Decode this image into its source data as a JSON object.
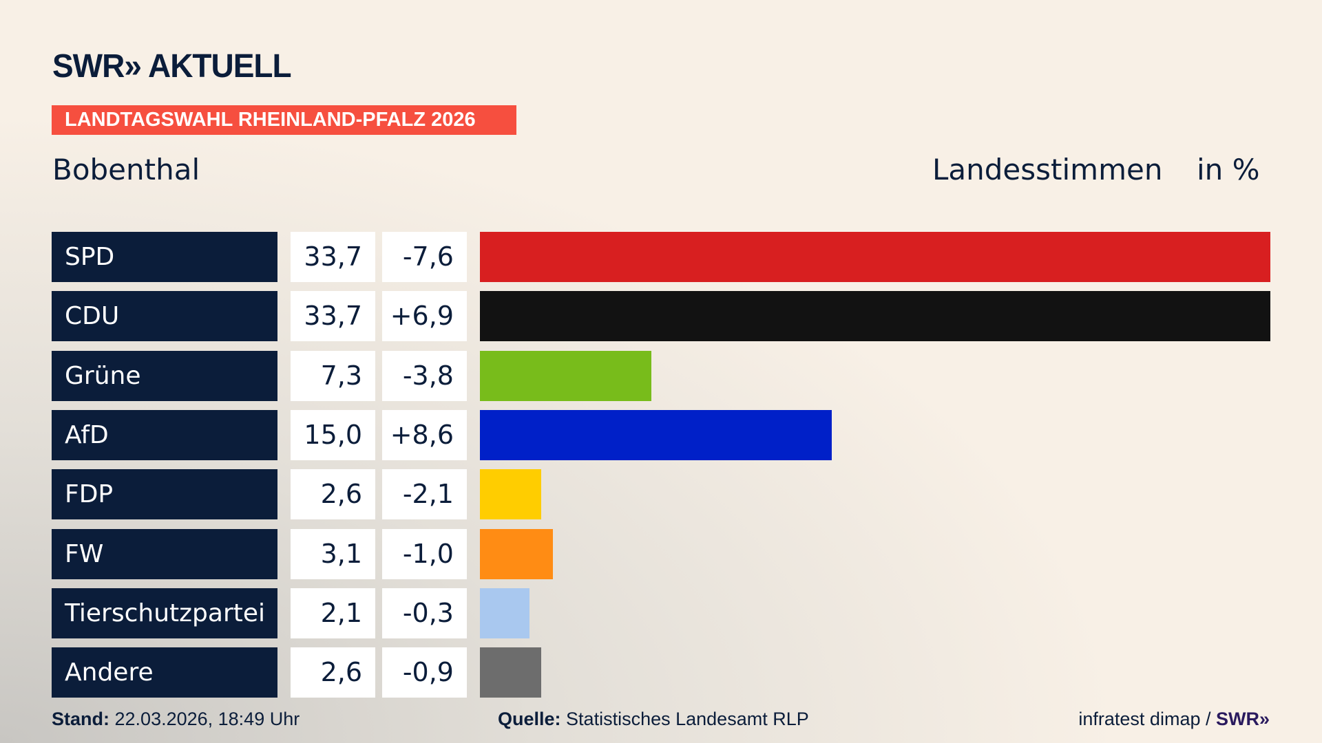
{
  "header": {
    "logo": "SWR» AKTUELL",
    "banner": "LANDTAGSWAHL RHEINLAND-PFALZ 2026",
    "place": "Bobenthal",
    "metric": "Landesstimmen",
    "unit": "in %"
  },
  "chart_data": {
    "type": "bar",
    "categories": [
      "SPD",
      "CDU",
      "Grüne",
      "AfD",
      "FDP",
      "FW",
      "Tierschutzpartei",
      "Andere"
    ],
    "values": [
      33.7,
      33.7,
      7.3,
      15.0,
      2.6,
      3.1,
      2.1,
      2.6
    ],
    "value_labels": [
      "33,7",
      "33,7",
      "7,3",
      "15,0",
      "2,6",
      "3,1",
      "2,1",
      "2,6"
    ],
    "diff_labels": [
      "-7,6",
      "+6,9",
      "-3,8",
      "+8,6",
      "-2,1",
      "-1,0",
      "-0,3",
      "-0,9"
    ],
    "colors": [
      "#d81f20",
      "#121212",
      "#78bc1b",
      "#0020c8",
      "#ffcd00",
      "#ff8c14",
      "#a9c8ef",
      "#6d6d6d"
    ],
    "orientation": "horizontal"
  },
  "footer": {
    "stand_label": "Stand:",
    "stand_value": "22.03.2026, 18:49 Uhr",
    "source_label": "Quelle:",
    "source_value": "Statistisches Landesamt RLP",
    "credit": "infratest dimap / ",
    "credit_brand": "SWR»"
  }
}
